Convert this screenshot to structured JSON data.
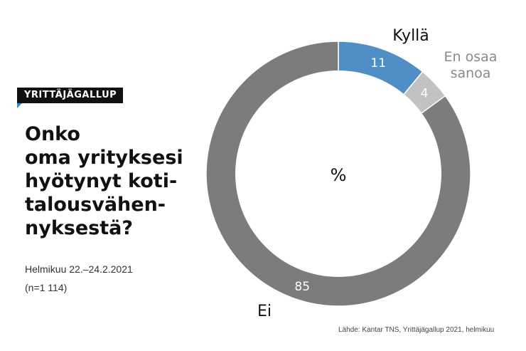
{
  "badge": "YRITTÄJÄGALLUP",
  "question_lines": [
    "Onko",
    "oma yrityksesi",
    "hyötynyt koti-",
    "talousvähen-",
    "nyksestä?"
  ],
  "date": "Helmikuu 22.–24.2.2021",
  "sample": "(n=1 114)",
  "source": "Lähde: Kantar TNS, Yrittäjägallup 2021, helmikuu",
  "colors": {
    "kylla": "#4f8fc6",
    "en_osaa": "#c2c2c2",
    "ei": "#7c7c7c",
    "badge": "#111111",
    "accent": "#2b8fd6"
  },
  "chart_data": {
    "type": "pie",
    "donut": true,
    "center_label": "%",
    "categories": [
      "Kyllä",
      "En osaa sanoa",
      "Ei"
    ],
    "category_label_lines": [
      [
        "Kyllä"
      ],
      [
        "En osaa",
        "sanoa"
      ],
      [
        "Ei"
      ]
    ],
    "values": [
      11,
      4,
      85
    ],
    "value_labels": [
      "11",
      "4",
      "85"
    ]
  }
}
